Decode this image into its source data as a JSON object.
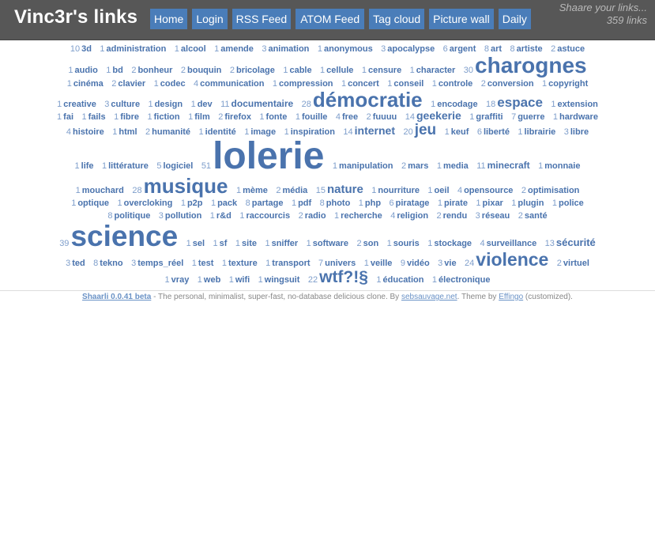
{
  "header": {
    "title": "Vinc3r's links",
    "nav": [
      "Home",
      "Login",
      "RSS Feed",
      "ATOM Feed",
      "Tag cloud",
      "Picture wall",
      "Daily"
    ],
    "tagline_line1": "Shaare your links...",
    "tagline_line2": "359 links"
  },
  "colors": {
    "header_bg": "#575757",
    "nav_button": "#4a7db9",
    "tag": "#4a73ad",
    "count": "#7e9ecb"
  },
  "tags": [
    {
      "count": "10",
      "name": "3d",
      "size": 11
    },
    {
      "count": "1",
      "name": "administration",
      "size": 11
    },
    {
      "count": "1",
      "name": "alcool",
      "size": 11
    },
    {
      "count": "1",
      "name": "amende",
      "size": 11
    },
    {
      "count": "3",
      "name": "animation",
      "size": 11
    },
    {
      "count": "1",
      "name": "anonymous",
      "size": 11
    },
    {
      "count": "3",
      "name": "apocalypse",
      "size": 11
    },
    {
      "count": "6",
      "name": "argent",
      "size": 11
    },
    {
      "count": "8",
      "name": "art",
      "size": 11
    },
    {
      "count": "8",
      "name": "artiste",
      "size": 11
    },
    {
      "count": "2",
      "name": "astuce",
      "size": 11
    },
    {
      "count": "1",
      "name": "audio",
      "size": 11
    },
    {
      "count": "1",
      "name": "bd",
      "size": 11
    },
    {
      "count": "2",
      "name": "bonheur",
      "size": 11
    },
    {
      "count": "2",
      "name": "bouquin",
      "size": 11
    },
    {
      "count": "2",
      "name": "bricolage",
      "size": 11
    },
    {
      "count": "1",
      "name": "cable",
      "size": 11
    },
    {
      "count": "1",
      "name": "cellule",
      "size": 11
    },
    {
      "count": "1",
      "name": "censure",
      "size": 11
    },
    {
      "count": "1",
      "name": "character",
      "size": 11
    },
    {
      "count": "30",
      "name": "charognes",
      "size": 28
    },
    {
      "count": "1",
      "name": "cinéma",
      "size": 11
    },
    {
      "count": "2",
      "name": "clavier",
      "size": 11
    },
    {
      "count": "1",
      "name": "codec",
      "size": 11
    },
    {
      "count": "4",
      "name": "communication",
      "size": 11
    },
    {
      "count": "1",
      "name": "compression",
      "size": 11
    },
    {
      "count": "1",
      "name": "concert",
      "size": 11
    },
    {
      "count": "1",
      "name": "conseil",
      "size": 11
    },
    {
      "count": "1",
      "name": "controle",
      "size": 11
    },
    {
      "count": "2",
      "name": "conversion",
      "size": 11
    },
    {
      "count": "1",
      "name": "copyright",
      "size": 11
    },
    {
      "count": "1",
      "name": "creative",
      "size": 11
    },
    {
      "count": "3",
      "name": "culture",
      "size": 11
    },
    {
      "count": "1",
      "name": "design",
      "size": 11
    },
    {
      "count": "1",
      "name": "dev",
      "size": 11
    },
    {
      "count": "11",
      "name": "documentaire",
      "size": 12
    },
    {
      "count": "28",
      "name": "démocratie",
      "size": 26
    },
    {
      "count": "1",
      "name": "encodage",
      "size": 11
    },
    {
      "count": "18",
      "name": "espace",
      "size": 17
    },
    {
      "count": "1",
      "name": "extension",
      "size": 11
    },
    {
      "count": "1",
      "name": "fai",
      "size": 11
    },
    {
      "count": "1",
      "name": "fails",
      "size": 11
    },
    {
      "count": "1",
      "name": "fibre",
      "size": 11
    },
    {
      "count": "1",
      "name": "fiction",
      "size": 11
    },
    {
      "count": "1",
      "name": "film",
      "size": 11
    },
    {
      "count": "2",
      "name": "firefox",
      "size": 11
    },
    {
      "count": "1",
      "name": "fonte",
      "size": 11
    },
    {
      "count": "1",
      "name": "fouille",
      "size": 11
    },
    {
      "count": "4",
      "name": "free",
      "size": 11
    },
    {
      "count": "2",
      "name": "fuuuu",
      "size": 11
    },
    {
      "count": "14",
      "name": "geekerie",
      "size": 14
    },
    {
      "count": "1",
      "name": "graffiti",
      "size": 11
    },
    {
      "count": "7",
      "name": "guerre",
      "size": 11
    },
    {
      "count": "1",
      "name": "hardware",
      "size": 11
    },
    {
      "count": "4",
      "name": "histoire",
      "size": 11
    },
    {
      "count": "1",
      "name": "html",
      "size": 11
    },
    {
      "count": "2",
      "name": "humanité",
      "size": 11
    },
    {
      "count": "1",
      "name": "identité",
      "size": 11
    },
    {
      "count": "1",
      "name": "image",
      "size": 11
    },
    {
      "count": "1",
      "name": "inspiration",
      "size": 11
    },
    {
      "count": "14",
      "name": "internet",
      "size": 14
    },
    {
      "count": "20",
      "name": "jeu",
      "size": 19
    },
    {
      "count": "1",
      "name": "keuf",
      "size": 11
    },
    {
      "count": "6",
      "name": "liberté",
      "size": 11
    },
    {
      "count": "1",
      "name": "librairie",
      "size": 11
    },
    {
      "count": "3",
      "name": "libre",
      "size": 11
    },
    {
      "count": "1",
      "name": "life",
      "size": 11
    },
    {
      "count": "1",
      "name": "littérature",
      "size": 11
    },
    {
      "count": "5",
      "name": "logiciel",
      "size": 11
    },
    {
      "count": "51",
      "name": "lolerie",
      "size": 48
    },
    {
      "count": "1",
      "name": "manipulation",
      "size": 11
    },
    {
      "count": "2",
      "name": "mars",
      "size": 11
    },
    {
      "count": "1",
      "name": "media",
      "size": 11
    },
    {
      "count": "11",
      "name": "minecraft",
      "size": 12
    },
    {
      "count": "1",
      "name": "monnaie",
      "size": 11
    },
    {
      "count": "1",
      "name": "mouchard",
      "size": 11
    },
    {
      "count": "28",
      "name": "musique",
      "size": 26
    },
    {
      "count": "1",
      "name": "mème",
      "size": 11
    },
    {
      "count": "2",
      "name": "média",
      "size": 11
    },
    {
      "count": "15",
      "name": "nature",
      "size": 15
    },
    {
      "count": "1",
      "name": "nourriture",
      "size": 11
    },
    {
      "count": "1",
      "name": "oeil",
      "size": 11
    },
    {
      "count": "4",
      "name": "opensource",
      "size": 11
    },
    {
      "count": "2",
      "name": "optimisation",
      "size": 11
    },
    {
      "count": "1",
      "name": "optique",
      "size": 11
    },
    {
      "count": "1",
      "name": "overcloking",
      "size": 11
    },
    {
      "count": "1",
      "name": "p2p",
      "size": 11
    },
    {
      "count": "1",
      "name": "pack",
      "size": 11
    },
    {
      "count": "8",
      "name": "partage",
      "size": 11
    },
    {
      "count": "1",
      "name": "pdf",
      "size": 11
    },
    {
      "count": "8",
      "name": "photo",
      "size": 11
    },
    {
      "count": "1",
      "name": "php",
      "size": 11
    },
    {
      "count": "6",
      "name": "piratage",
      "size": 11
    },
    {
      "count": "1",
      "name": "pirate",
      "size": 11
    },
    {
      "count": "1",
      "name": "pixar",
      "size": 11
    },
    {
      "count": "1",
      "name": "plugin",
      "size": 11
    },
    {
      "count": "1",
      "name": "police",
      "size": 11
    },
    {
      "count": "8",
      "name": "politique",
      "size": 11
    },
    {
      "count": "3",
      "name": "pollution",
      "size": 11
    },
    {
      "count": "1",
      "name": "r&d",
      "size": 11
    },
    {
      "count": "1",
      "name": "raccourcis",
      "size": 11
    },
    {
      "count": "2",
      "name": "radio",
      "size": 11
    },
    {
      "count": "1",
      "name": "recherche",
      "size": 11
    },
    {
      "count": "4",
      "name": "religion",
      "size": 11
    },
    {
      "count": "2",
      "name": "rendu",
      "size": 11
    },
    {
      "count": "3",
      "name": "réseau",
      "size": 11
    },
    {
      "count": "2",
      "name": "santé",
      "size": 11
    },
    {
      "count": "39",
      "name": "science",
      "size": 37
    },
    {
      "count": "1",
      "name": "sel",
      "size": 11
    },
    {
      "count": "1",
      "name": "sf",
      "size": 11
    },
    {
      "count": "1",
      "name": "site",
      "size": 11
    },
    {
      "count": "1",
      "name": "sniffer",
      "size": 11
    },
    {
      "count": "1",
      "name": "software",
      "size": 11
    },
    {
      "count": "2",
      "name": "son",
      "size": 11
    },
    {
      "count": "1",
      "name": "souris",
      "size": 11
    },
    {
      "count": "1",
      "name": "stockage",
      "size": 11
    },
    {
      "count": "4",
      "name": "surveillance",
      "size": 11
    },
    {
      "count": "13",
      "name": "sécurité",
      "size": 13
    },
    {
      "count": "3",
      "name": "ted",
      "size": 11
    },
    {
      "count": "8",
      "name": "tekno",
      "size": 11
    },
    {
      "count": "3",
      "name": "temps_réel",
      "size": 11
    },
    {
      "count": "1",
      "name": "test",
      "size": 11
    },
    {
      "count": "1",
      "name": "texture",
      "size": 11
    },
    {
      "count": "1",
      "name": "transport",
      "size": 11
    },
    {
      "count": "7",
      "name": "univers",
      "size": 11
    },
    {
      "count": "1",
      "name": "veille",
      "size": 11
    },
    {
      "count": "9",
      "name": "vidéo",
      "size": 11
    },
    {
      "count": "3",
      "name": "vie",
      "size": 11
    },
    {
      "count": "24",
      "name": "violence",
      "size": 23
    },
    {
      "count": "2",
      "name": "virtuel",
      "size": 11
    },
    {
      "count": "1",
      "name": "vray",
      "size": 11
    },
    {
      "count": "1",
      "name": "web",
      "size": 11
    },
    {
      "count": "1",
      "name": "wifi",
      "size": 11
    },
    {
      "count": "1",
      "name": "wingsuit",
      "size": 11
    },
    {
      "count": "22",
      "name": "wtf?!§",
      "size": 21
    },
    {
      "count": "1",
      "name": "éducation",
      "size": 11
    },
    {
      "count": "1",
      "name": "électronique",
      "size": 11
    }
  ],
  "footer": {
    "app_link": "Shaarli 0.0.41 beta",
    "text1": " - The personal, minimalist, super-fast, no-database delicious clone. By ",
    "author_link": "sebsauvage.net",
    "text2": ". Theme by ",
    "theme_link": "Effingo",
    "text3": " (customized)."
  }
}
